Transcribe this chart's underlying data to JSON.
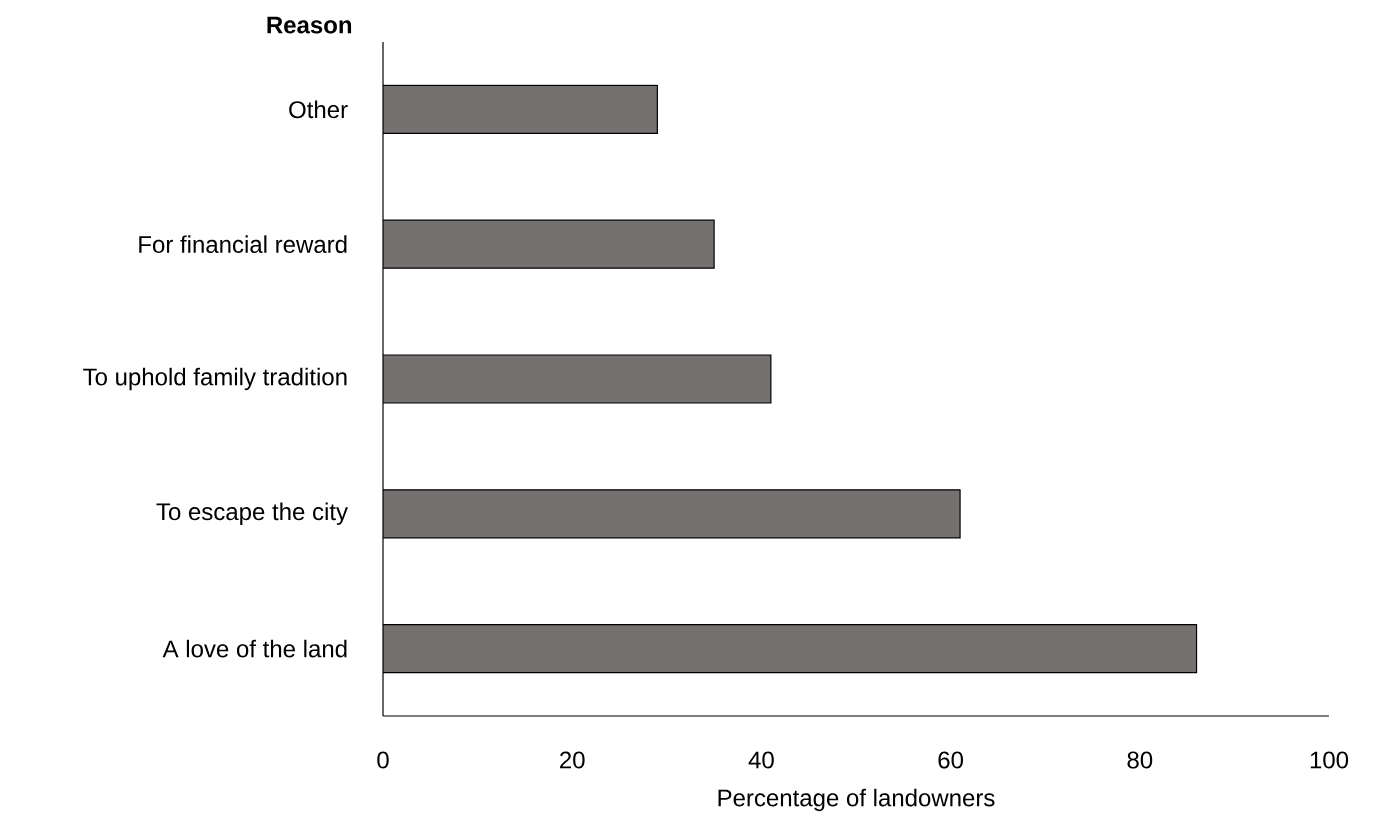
{
  "chart_data": {
    "type": "bar",
    "orientation": "horizontal",
    "ylabel": "Reason",
    "xlabel": "Percentage of landowners",
    "categories": [
      "Other",
      "For financial reward",
      "To uphold family tradition",
      "To escape the city",
      "A love of the land"
    ],
    "values": [
      29,
      35,
      41,
      61,
      86
    ],
    "color": "#767171",
    "xlim": [
      0,
      100
    ],
    "xticks": [
      0,
      20,
      40,
      60,
      80,
      100
    ]
  }
}
